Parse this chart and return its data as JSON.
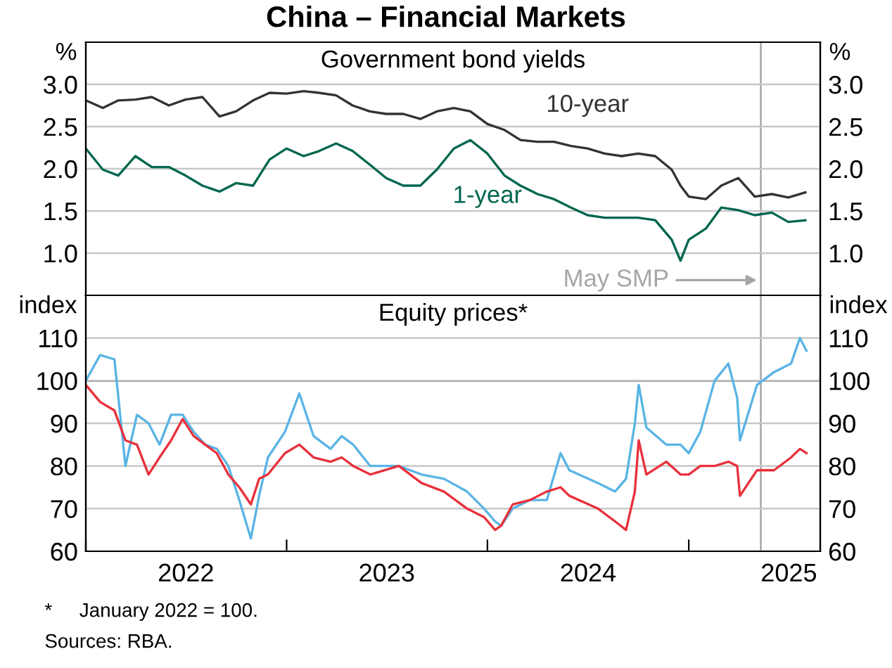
{
  "chart_data": [
    {
      "type": "line",
      "title": "China – Financial Markets",
      "subtitle": "Government bond yields",
      "ylabel": "%",
      "y2label": "%",
      "x": [
        "2022-01-01",
        "2022-02-01",
        "2022-03-01",
        "2022-04-01",
        "2022-05-01",
        "2022-06-01",
        "2022-07-01",
        "2022-08-01",
        "2022-09-01",
        "2022-10-01",
        "2022-11-01",
        "2022-12-01",
        "2023-01-01",
        "2023-02-01",
        "2023-03-01",
        "2023-04-01",
        "2023-05-01",
        "2023-06-01",
        "2023-07-01",
        "2023-08-01",
        "2023-09-01",
        "2023-10-01",
        "2023-11-01",
        "2023-12-01",
        "2024-01-01",
        "2024-02-01",
        "2024-03-01",
        "2024-04-01",
        "2024-05-01",
        "2024-06-01",
        "2024-07-01",
        "2024-08-01",
        "2024-09-01",
        "2024-10-01",
        "2024-11-01",
        "2024-12-01",
        "2024-12-17",
        "2025-01-01",
        "2025-02-01",
        "2025-03-01",
        "2025-04-01",
        "2025-05-01",
        "2025-06-01",
        "2025-07-01",
        "2025-08-01"
      ],
      "series": [
        {
          "name": "10-year",
          "color": "#333333",
          "values": [
            2.81,
            2.72,
            2.81,
            2.82,
            2.85,
            2.75,
            2.82,
            2.85,
            2.62,
            2.68,
            2.81,
            2.9,
            2.89,
            2.92,
            2.9,
            2.87,
            2.75,
            2.68,
            2.65,
            2.65,
            2.59,
            2.68,
            2.72,
            2.68,
            2.53,
            2.46,
            2.34,
            2.32,
            2.32,
            2.27,
            2.24,
            2.18,
            2.15,
            2.18,
            2.15,
            1.99,
            1.8,
            1.67,
            1.64,
            1.8,
            1.89,
            1.67,
            1.7,
            1.66,
            1.72
          ]
        },
        {
          "name": "1-year",
          "color": "#00664f",
          "values": [
            2.24,
            1.99,
            1.92,
            2.15,
            2.02,
            2.02,
            1.92,
            1.8,
            1.73,
            1.83,
            1.8,
            2.11,
            2.24,
            2.15,
            2.21,
            2.3,
            2.21,
            2.05,
            1.89,
            1.8,
            1.8,
            1.99,
            2.24,
            2.34,
            2.18,
            1.92,
            1.8,
            1.7,
            1.64,
            1.54,
            1.45,
            1.42,
            1.42,
            1.42,
            1.39,
            1.16,
            0.91,
            1.16,
            1.29,
            1.54,
            1.51,
            1.45,
            1.48,
            1.37,
            1.39
          ]
        }
      ],
      "xlim": [
        "2022-01-01",
        "2025-08-28"
      ],
      "ylim": [
        0.5,
        3.5
      ],
      "yticks": [
        {
          "value": 1,
          "label": "1.0"
        },
        1.5,
        {
          "value": 2,
          "label": "2.0"
        },
        2.5,
        {
          "value": 3,
          "label": "3.0"
        }
      ],
      "y2lim": [
        0.5,
        3.5
      ],
      "y2ticks": [
        {
          "value": 1,
          "label": "1.0"
        },
        1.5,
        {
          "value": 2,
          "label": "2.0"
        },
        2.5,
        {
          "value": 3,
          "label": "3.0"
        }
      ],
      "tick_labels": "y",
      "grid": "y",
      "legend": false,
      "ref_lines": [
        {
          "axis": "x",
          "value": "2025-05-12",
          "label": "May SMP",
          "color": "#a6a6a6"
        }
      ]
    },
    {
      "type": "line",
      "subtitle": "Equity prices*",
      "ylabel": "index",
      "y2label": "index",
      "x": [
        "2022-01-01",
        "2022-01-27",
        "2022-02-22",
        "2022-03-14",
        "2022-04-04",
        "2022-04-25",
        "2022-05-15",
        "2022-06-05",
        "2022-06-26",
        "2022-07-16",
        "2022-08-06",
        "2022-08-27",
        "2022-09-17",
        "2022-10-07",
        "2022-10-28",
        "2022-11-12",
        "2022-11-28",
        "2022-12-29",
        "2023-01-24",
        "2023-02-19",
        "2023-03-22",
        "2023-04-11",
        "2023-05-02",
        "2023-06-02",
        "2023-07-24",
        "2023-09-03",
        "2023-10-14",
        "2023-11-25",
        "2023-12-26",
        "2024-01-15",
        "2024-01-26",
        "2024-02-16",
        "2024-03-18",
        "2024-04-18",
        "2024-05-13",
        "2024-05-29",
        "2024-07-20",
        "2024-08-20",
        "2024-09-09",
        "2024-09-25",
        "2024-10-02",
        "2024-10-16",
        "2024-11-21",
        "2024-12-17",
        "2025-01-01",
        "2025-01-22",
        "2025-02-17",
        "2025-03-14",
        "2025-03-30",
        "2025-04-04",
        "2025-05-05",
        "2025-06-05",
        "2025-07-06",
        "2025-07-22",
        "2025-08-03"
      ],
      "series": [
        {
          "color": "#5ab4e5",
          "values": [
            100,
            106,
            105,
            80,
            92,
            90,
            85,
            92,
            92,
            88,
            85,
            84,
            80,
            72,
            63,
            73,
            82,
            88,
            97,
            87,
            84,
            87,
            85,
            80,
            80,
            78,
            77,
            74,
            70,
            67,
            66,
            70,
            72,
            72,
            83,
            79,
            76,
            74,
            77,
            90,
            99,
            89,
            85,
            85,
            83,
            88,
            100,
            104,
            96,
            86,
            99,
            102,
            104,
            110,
            107
          ]
        },
        {
          "color": "#e8313c",
          "values": [
            99,
            95,
            93,
            86,
            85,
            78,
            82,
            86,
            91,
            87,
            85,
            83,
            78,
            75,
            71,
            77,
            78,
            83,
            85,
            82,
            81,
            82,
            80,
            78,
            80,
            76,
            74,
            70,
            68,
            65,
            66,
            71,
            72,
            74,
            75,
            73,
            70,
            67,
            65,
            74,
            86,
            78,
            81,
            78,
            78,
            80,
            80,
            81,
            80,
            73,
            79,
            79,
            82,
            84,
            83
          ]
        }
      ],
      "xlim": [
        "2022-01-01",
        "2025-08-28"
      ],
      "ylim": [
        60,
        120
      ],
      "yticks": [
        60,
        70,
        80,
        90,
        100,
        110
      ],
      "y2lim": [
        60,
        120
      ],
      "y2ticks": [
        60,
        70,
        80,
        90,
        100,
        110
      ],
      "xticks": [
        {
          "value": "2022-01-01",
          "label": null
        },
        {
          "value": "2022-07-02",
          "label": "2022"
        },
        {
          "value": "2023-01-01",
          "label": null
        },
        {
          "value": "2023-07-02",
          "label": "2023"
        },
        {
          "value": "2024-01-01",
          "label": null
        },
        {
          "value": "2024-07-02",
          "label": "2024"
        },
        {
          "value": "2025-01-01",
          "label": null
        },
        {
          "value": "2025-07-02",
          "label": "2025"
        }
      ],
      "grid": "y",
      "legend": false,
      "ref_lines": [
        {
          "axis": "y",
          "value": 100,
          "color": "#333333"
        },
        {
          "axis": "x",
          "value": "2025-05-12",
          "color": "#a6a6a6"
        }
      ],
      "annotations": [
        "*     January 2022 = 100.",
        "Sources: RBA."
      ]
    }
  ]
}
